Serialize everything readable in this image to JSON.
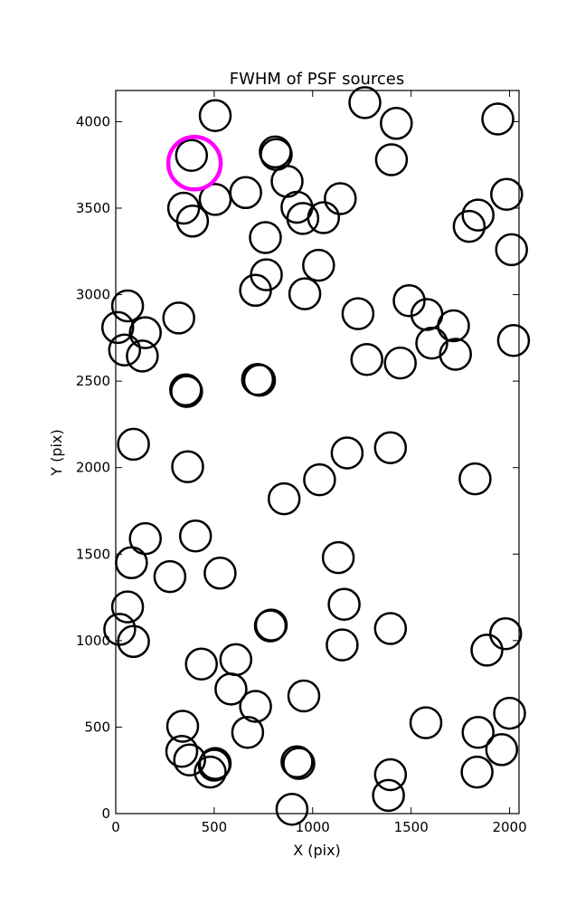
{
  "chart_data": {
    "type": "scatter",
    "title": "FWHM of PSF sources",
    "xlabel": "X (pix)",
    "ylabel": "Y (pix)",
    "xlim": [
      0,
      2048
    ],
    "ylim": [
      0,
      4180
    ],
    "xticks": [
      0,
      500,
      1000,
      1500,
      2000
    ],
    "yticks": [
      0,
      500,
      1000,
      1500,
      2000,
      2500,
      3000,
      3500,
      4000
    ],
    "marker": "open circle",
    "marker_color": "#000000",
    "highlight_color": "#ff00ff",
    "grid": false,
    "points": [
      {
        "x": 505,
        "y": 4035
      },
      {
        "x": 1265,
        "y": 4110
      },
      {
        "x": 1425,
        "y": 3990
      },
      {
        "x": 1940,
        "y": 4015
      },
      {
        "x": 385,
        "y": 3805
      },
      {
        "x": 810,
        "y": 3825
      },
      {
        "x": 815,
        "y": 3810
      },
      {
        "x": 1400,
        "y": 3780
      },
      {
        "x": 870,
        "y": 3655
      },
      {
        "x": 1985,
        "y": 3580
      },
      {
        "x": 660,
        "y": 3590
      },
      {
        "x": 505,
        "y": 3550
      },
      {
        "x": 1140,
        "y": 3555
      },
      {
        "x": 345,
        "y": 3500
      },
      {
        "x": 920,
        "y": 3505
      },
      {
        "x": 1840,
        "y": 3460
      },
      {
        "x": 390,
        "y": 3425
      },
      {
        "x": 950,
        "y": 3440
      },
      {
        "x": 1055,
        "y": 3445
      },
      {
        "x": 1795,
        "y": 3395
      },
      {
        "x": 760,
        "y": 3330
      },
      {
        "x": 2010,
        "y": 3260
      },
      {
        "x": 1030,
        "y": 3170
      },
      {
        "x": 765,
        "y": 3115
      },
      {
        "x": 710,
        "y": 3025
      },
      {
        "x": 960,
        "y": 3005
      },
      {
        "x": 1490,
        "y": 2965
      },
      {
        "x": 60,
        "y": 2935
      },
      {
        "x": 1230,
        "y": 2890
      },
      {
        "x": 1580,
        "y": 2885
      },
      {
        "x": 320,
        "y": 2865
      },
      {
        "x": 10,
        "y": 2810
      },
      {
        "x": 1715,
        "y": 2820
      },
      {
        "x": 150,
        "y": 2780
      },
      {
        "x": 2020,
        "y": 2735
      },
      {
        "x": 1605,
        "y": 2720
      },
      {
        "x": 45,
        "y": 2680
      },
      {
        "x": 135,
        "y": 2645
      },
      {
        "x": 1725,
        "y": 2655
      },
      {
        "x": 1275,
        "y": 2625
      },
      {
        "x": 1445,
        "y": 2605
      },
      {
        "x": 720,
        "y": 2510
      },
      {
        "x": 730,
        "y": 2505
      },
      {
        "x": 355,
        "y": 2450
      },
      {
        "x": 360,
        "y": 2440
      },
      {
        "x": 90,
        "y": 2135
      },
      {
        "x": 1395,
        "y": 2115
      },
      {
        "x": 1175,
        "y": 2085
      },
      {
        "x": 365,
        "y": 2005
      },
      {
        "x": 1035,
        "y": 1930
      },
      {
        "x": 1825,
        "y": 1935
      },
      {
        "x": 855,
        "y": 1820
      },
      {
        "x": 405,
        "y": 1605
      },
      {
        "x": 150,
        "y": 1590
      },
      {
        "x": 1130,
        "y": 1480
      },
      {
        "x": 80,
        "y": 1450
      },
      {
        "x": 530,
        "y": 1390
      },
      {
        "x": 275,
        "y": 1370
      },
      {
        "x": 1160,
        "y": 1210
      },
      {
        "x": 60,
        "y": 1195
      },
      {
        "x": 785,
        "y": 1085
      },
      {
        "x": 790,
        "y": 1090
      },
      {
        "x": 1395,
        "y": 1070
      },
      {
        "x": 20,
        "y": 1065
      },
      {
        "x": 1980,
        "y": 1040
      },
      {
        "x": 90,
        "y": 995
      },
      {
        "x": 1150,
        "y": 975
      },
      {
        "x": 1885,
        "y": 945
      },
      {
        "x": 610,
        "y": 890
      },
      {
        "x": 435,
        "y": 865
      },
      {
        "x": 585,
        "y": 720
      },
      {
        "x": 955,
        "y": 680
      },
      {
        "x": 710,
        "y": 620
      },
      {
        "x": 2000,
        "y": 580
      },
      {
        "x": 1575,
        "y": 525
      },
      {
        "x": 340,
        "y": 505
      },
      {
        "x": 1840,
        "y": 470
      },
      {
        "x": 670,
        "y": 470
      },
      {
        "x": 1960,
        "y": 370
      },
      {
        "x": 335,
        "y": 360
      },
      {
        "x": 375,
        "y": 310
      },
      {
        "x": 920,
        "y": 300
      },
      {
        "x": 930,
        "y": 290
      },
      {
        "x": 505,
        "y": 290
      },
      {
        "x": 500,
        "y": 280
      },
      {
        "x": 480,
        "y": 240
      },
      {
        "x": 1835,
        "y": 240
      },
      {
        "x": 1395,
        "y": 225
      },
      {
        "x": 1385,
        "y": 105
      },
      {
        "x": 895,
        "y": 25
      }
    ],
    "highlight": [
      {
        "x": 400,
        "y": 3760
      }
    ]
  }
}
